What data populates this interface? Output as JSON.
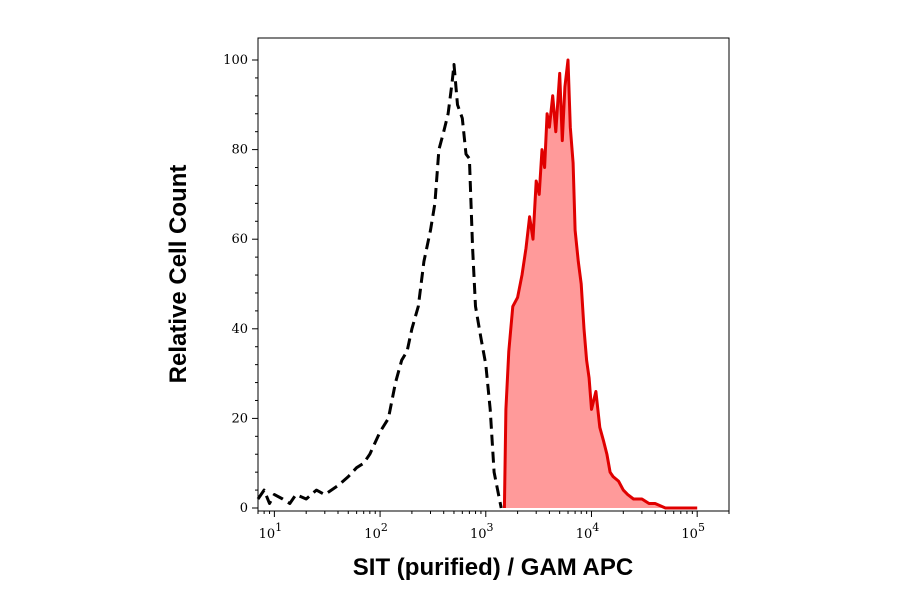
{
  "chart_data": {
    "type": "area",
    "title": "",
    "xlabel": "SIT (purified) / GAM APC",
    "ylabel": "Relative Cell Count",
    "x_scale": "log",
    "xlim": [
      7,
      200000
    ],
    "ylim": [
      0,
      100
    ],
    "grid": false,
    "x_ticks": [
      {
        "value": 10,
        "base": "10",
        "exp": "1"
      },
      {
        "value": 100,
        "base": "10",
        "exp": "2"
      },
      {
        "value": 1000,
        "base": "10",
        "exp": "3"
      },
      {
        "value": 10000,
        "base": "10",
        "exp": "4"
      },
      {
        "value": 100000,
        "base": "10",
        "exp": "5"
      }
    ],
    "y_ticks": [
      {
        "value": 0,
        "label": "0"
      },
      {
        "value": 20,
        "label": "20"
      },
      {
        "value": 40,
        "label": "40"
      },
      {
        "value": 60,
        "label": "60"
      },
      {
        "value": 80,
        "label": "80"
      },
      {
        "value": 100,
        "label": "100"
      }
    ],
    "series": [
      {
        "style": "dashed",
        "color": "#000000",
        "fill": "none",
        "x": [
          7,
          8,
          9,
          10,
          12,
          14,
          16,
          20,
          25,
          30,
          40,
          50,
          60,
          70,
          80,
          100,
          120,
          140,
          160,
          180,
          200,
          230,
          260,
          300,
          330,
          360,
          400,
          440,
          480,
          500,
          540,
          600,
          650,
          700,
          750,
          800,
          900,
          1000,
          1100,
          1200,
          1400
        ],
        "y": [
          2,
          4,
          1,
          3,
          2,
          1,
          3,
          2,
          4,
          3,
          5,
          7,
          9,
          10,
          12,
          17,
          20,
          28,
          33,
          35,
          40,
          45,
          55,
          62,
          68,
          80,
          84,
          88,
          95,
          99,
          90,
          87,
          79,
          78,
          58,
          45,
          38,
          32,
          22,
          8,
          0
        ]
      },
      {
        "style": "solid",
        "color": "#e00000",
        "fill": "#ff9a9a",
        "x": [
          1500,
          1550,
          1650,
          1800,
          2000,
          2200,
          2400,
          2600,
          2800,
          3000,
          3200,
          3400,
          3600,
          3800,
          4000,
          4300,
          4600,
          5000,
          5300,
          5600,
          6000,
          6300,
          6700,
          7000,
          7500,
          8000,
          8500,
          9000,
          9500,
          10000,
          11000,
          12000,
          13000,
          14000,
          15000,
          16000,
          18000,
          20000,
          22000,
          25000,
          30000,
          35000,
          40000,
          50000,
          60000,
          80000,
          100000
        ],
        "y": [
          0,
          22,
          35,
          45,
          47,
          52,
          58,
          65,
          60,
          73,
          70,
          80,
          76,
          88,
          85,
          92,
          84,
          97,
          82,
          94,
          100,
          85,
          77,
          62,
          55,
          50,
          40,
          33,
          29,
          22,
          26,
          18,
          15,
          12,
          8,
          7,
          6,
          4,
          3,
          2,
          2,
          1,
          1,
          0,
          0,
          0,
          0
        ]
      }
    ]
  }
}
